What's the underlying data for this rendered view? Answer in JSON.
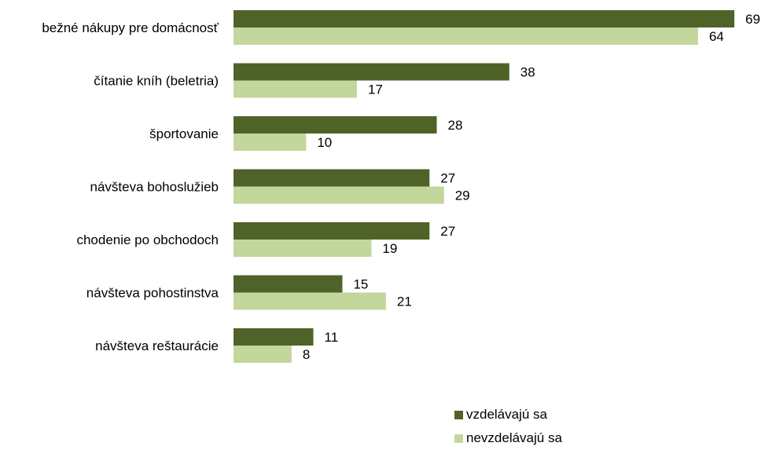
{
  "chart_data": {
    "type": "bar",
    "orientation": "horizontal",
    "categories": [
      "bežné nákupy pre domácnosť",
      "čítanie kníh (beletria)",
      "športovanie",
      "návšteva bohoslužieb",
      "chodenie po obchodoch",
      "návšteva pohostinstva",
      "návšteva reštaurácie"
    ],
    "series": [
      {
        "name": "vzdelávajú sa",
        "color": "#4f6228",
        "values": [
          69,
          38,
          28,
          27,
          27,
          15,
          11
        ]
      },
      {
        "name": "nevzdelávajú sa",
        "color": "#c3d69b",
        "values": [
          64,
          17,
          10,
          29,
          19,
          21,
          8
        ]
      }
    ],
    "xlim": [
      0,
      69
    ],
    "grid": false,
    "legend_position": "bottom-right",
    "data_labels": true
  }
}
